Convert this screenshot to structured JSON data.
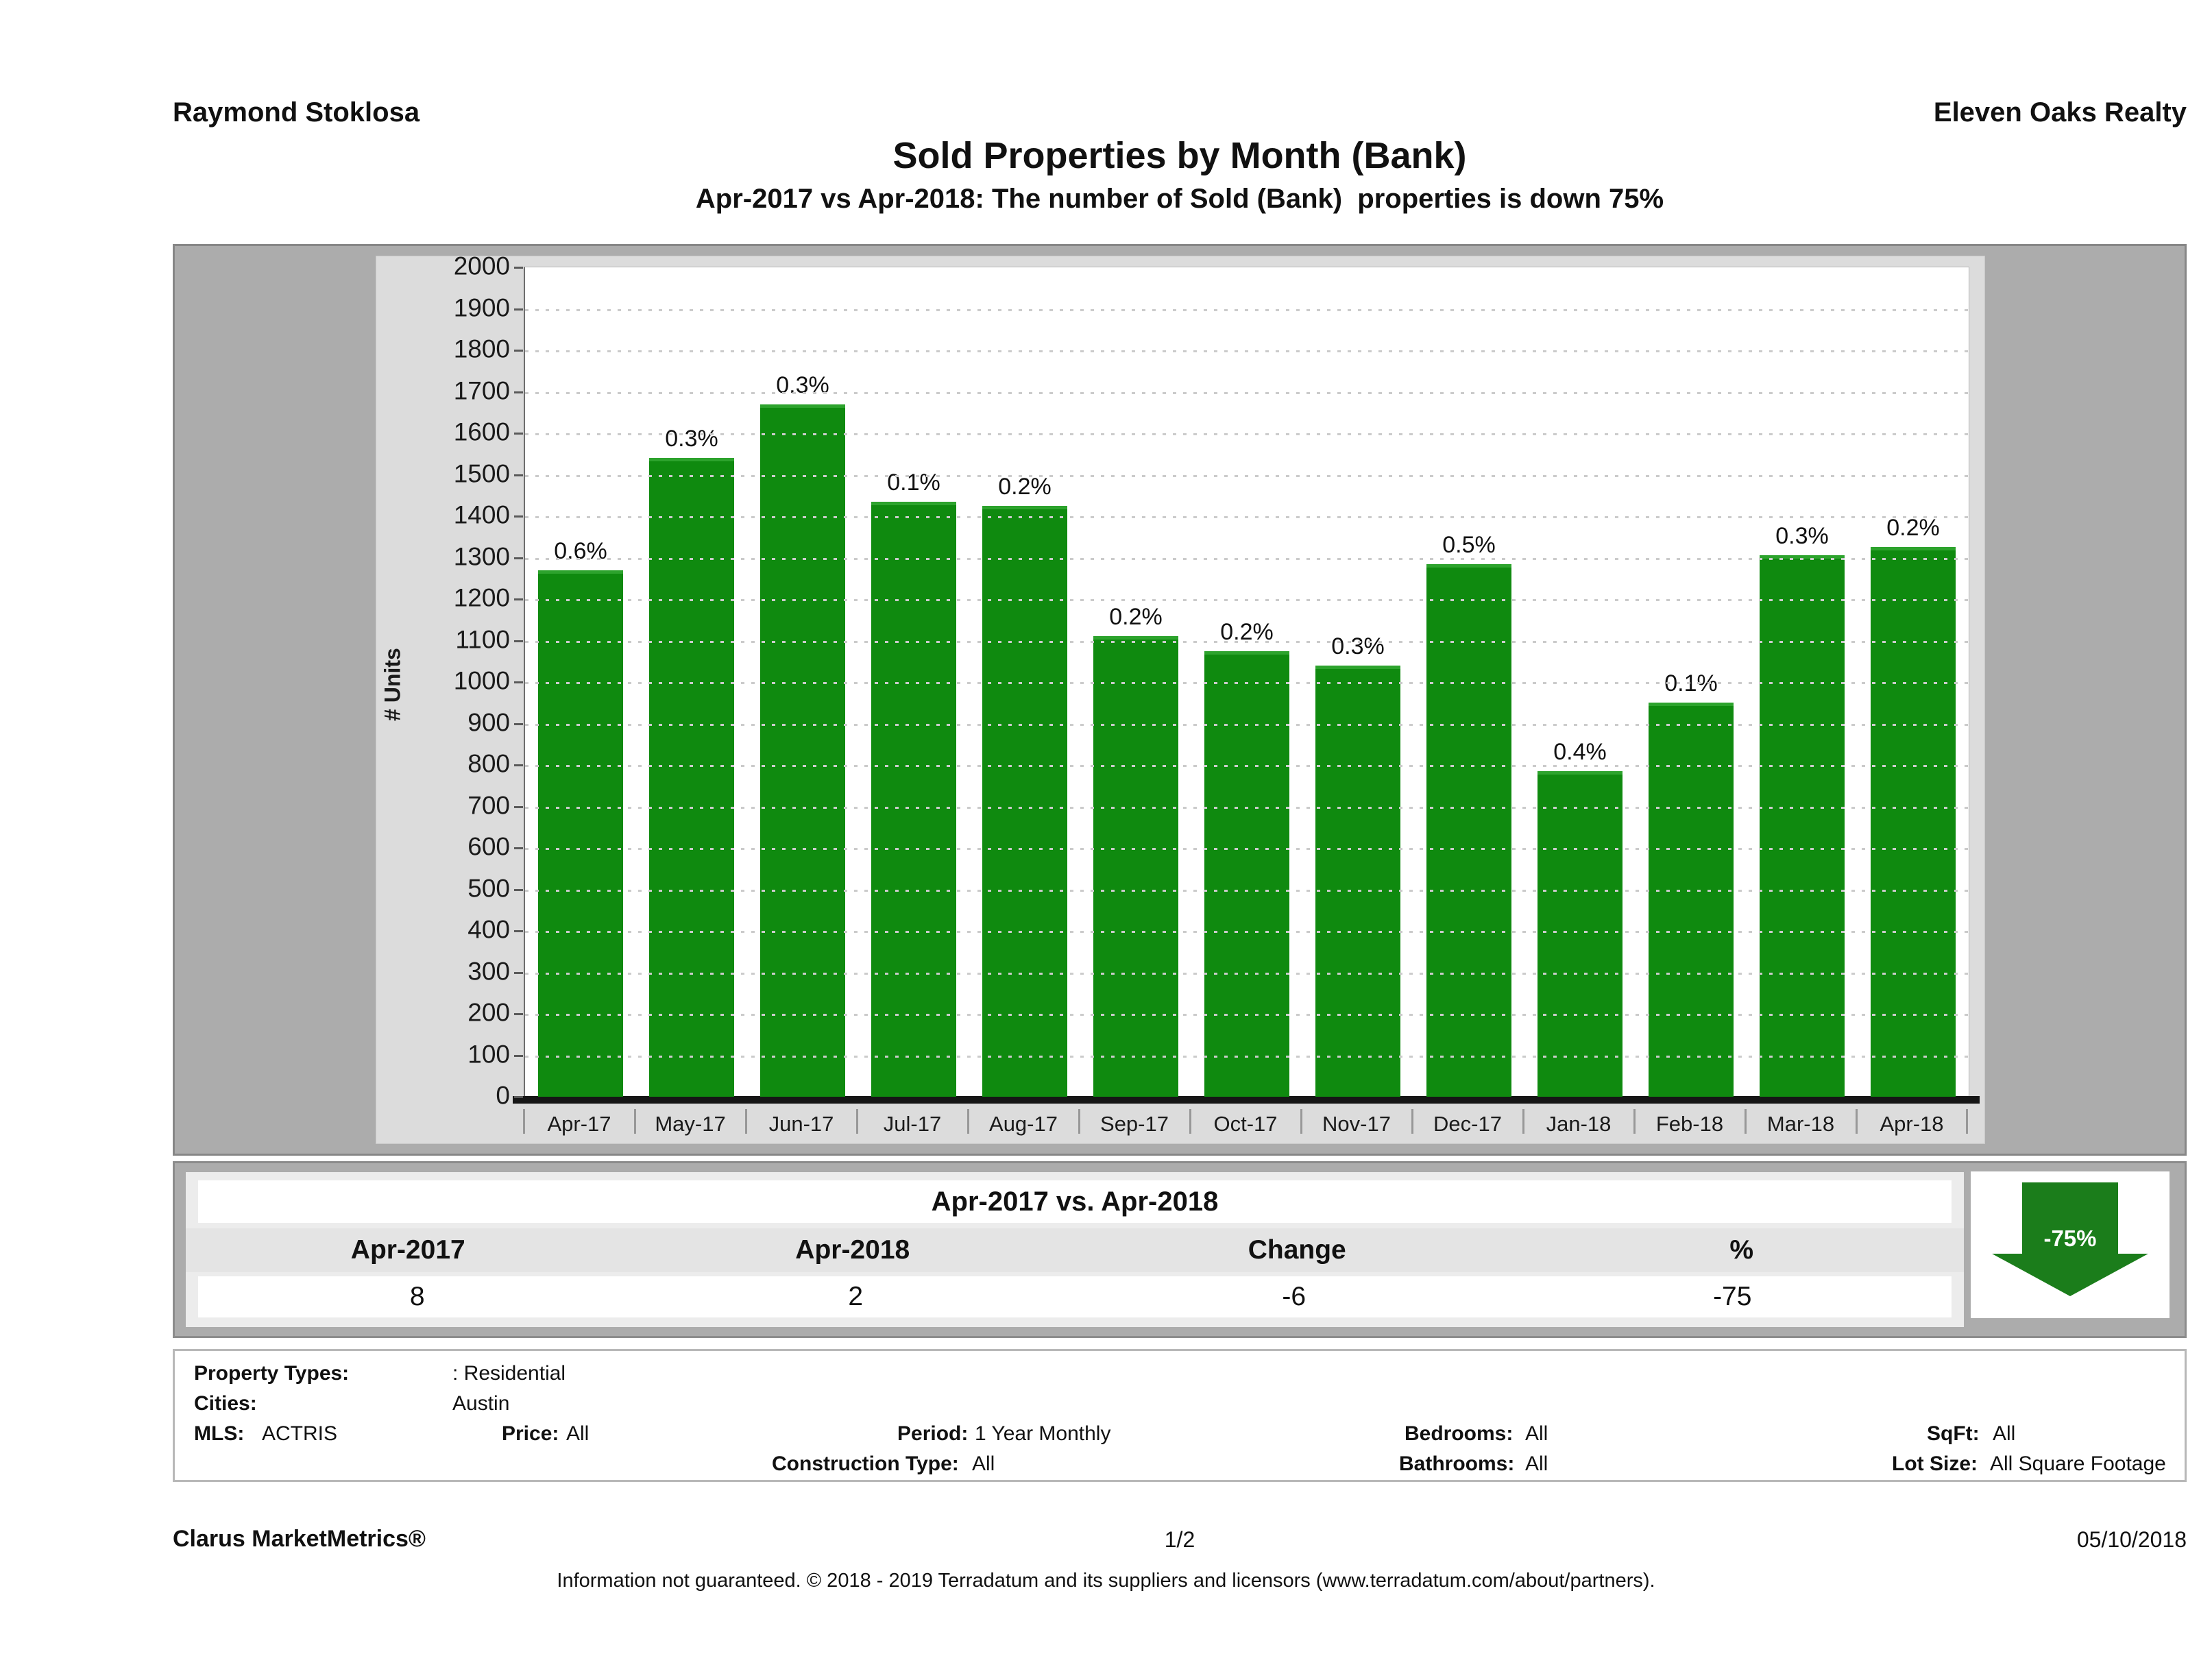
{
  "header": {
    "left": "Raymond Stoklosa",
    "right": "Eleven Oaks Realty"
  },
  "title": "Sold Properties by Month (Bank)",
  "subtitle": "Apr-2017 vs Apr-2018: The number of Sold (Bank)  properties is down 75%",
  "chart_data": {
    "type": "bar",
    "title": "Sold Properties by Month (Bank)",
    "xlabel": "",
    "ylabel": "# Units",
    "ylim": [
      0,
      2000
    ],
    "ytick_step": 100,
    "grid": "horizontal-dotted",
    "legend": "none",
    "bar_color": "#0f8a0f",
    "categories": [
      "Apr-17",
      "May-17",
      "Jun-17",
      "Jul-17",
      "Aug-17",
      "Sep-17",
      "Oct-17",
      "Nov-17",
      "Dec-17",
      "Jan-18",
      "Feb-18",
      "Mar-18",
      "Apr-18"
    ],
    "values": [
      1270,
      1540,
      1670,
      1435,
      1425,
      1110,
      1075,
      1040,
      1285,
      785,
      950,
      1305,
      1325
    ],
    "bar_labels": [
      "0.6%",
      "0.3%",
      "0.3%",
      "0.1%",
      "0.2%",
      "0.2%",
      "0.2%",
      "0.3%",
      "0.5%",
      "0.4%",
      "0.1%",
      "0.3%",
      "0.2%"
    ]
  },
  "summary_table": {
    "title": "Apr-2017 vs. Apr-2018",
    "columns": [
      "Apr-2017",
      "Apr-2018",
      "Change",
      "%"
    ],
    "values": [
      "8",
      "2",
      "-6",
      "-75"
    ]
  },
  "change_badge": {
    "label": "-75%",
    "direction": "down",
    "color": "#1b7d1b"
  },
  "filters": {
    "property_types_label": "Property Types:",
    "property_types_value": ": Residential",
    "cities_label": "Cities:",
    "cities_value": "Austin",
    "mls_label": "MLS:",
    "mls_value": "ACTRIS",
    "price_label": "Price:",
    "price_value": "All",
    "period_label": "Period:",
    "period_value": "1 Year Monthly",
    "construction_label": "Construction Type:",
    "construction_value": "All",
    "bedrooms_label": "Bedrooms:",
    "bedrooms_value": "All",
    "bathrooms_label": "Bathrooms:",
    "bathrooms_value": "All",
    "sqft_label": "SqFt:",
    "sqft_value": "All",
    "lot_size_label": "Lot Size:",
    "lot_size_value": "All Square Footage"
  },
  "footer": {
    "brand": "Clarus MarketMetrics®",
    "page": "1/2",
    "date": "05/10/2018",
    "disclaimer": "Information not guaranteed. © 2018 - 2019 Terradatum and its suppliers and licensors (www.terradatum.com/about/partners)."
  }
}
